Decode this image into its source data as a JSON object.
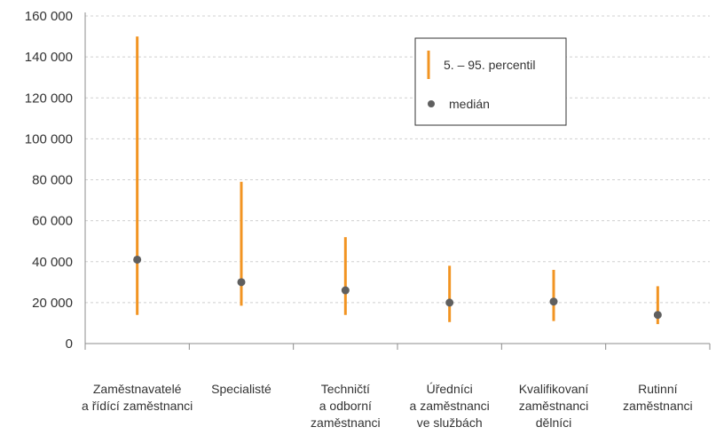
{
  "chart_data": {
    "type": "range",
    "categories": [
      [
        "Zaměstnavatelé",
        "a řídící zaměstnanci"
      ],
      [
        "Specialisté"
      ],
      [
        "Techničtí",
        "a odborní",
        "zaměstnanci"
      ],
      [
        "Úředníci",
        "a zaměstnanci",
        "ve službách"
      ],
      [
        "Kvalifikovaní",
        "zaměstnanci",
        "dělníci"
      ],
      [
        "Rutinní",
        "zaměstnanci"
      ]
    ],
    "series": [
      {
        "name": "5. – 95. percentil",
        "low": [
          14000,
          18500,
          14000,
          10500,
          11000,
          9500
        ],
        "high": [
          150000,
          79000,
          52000,
          38000,
          36000,
          28000
        ]
      },
      {
        "name": "medián",
        "values": [
          41000,
          30000,
          26000,
          20000,
          20500,
          14000
        ]
      }
    ],
    "y_ticks": [
      "0",
      "20 000",
      "40 000",
      "60 000",
      "80 000",
      "100 000",
      "120 000",
      "140 000",
      "160 000"
    ],
    "ylim": [
      0,
      160000
    ],
    "grid": true,
    "legend_position": "top-right"
  },
  "colors": {
    "range": "#F29422",
    "median": "#5F5F5F",
    "grid": "#D0D0D0",
    "axis": "#8C8C8C"
  }
}
